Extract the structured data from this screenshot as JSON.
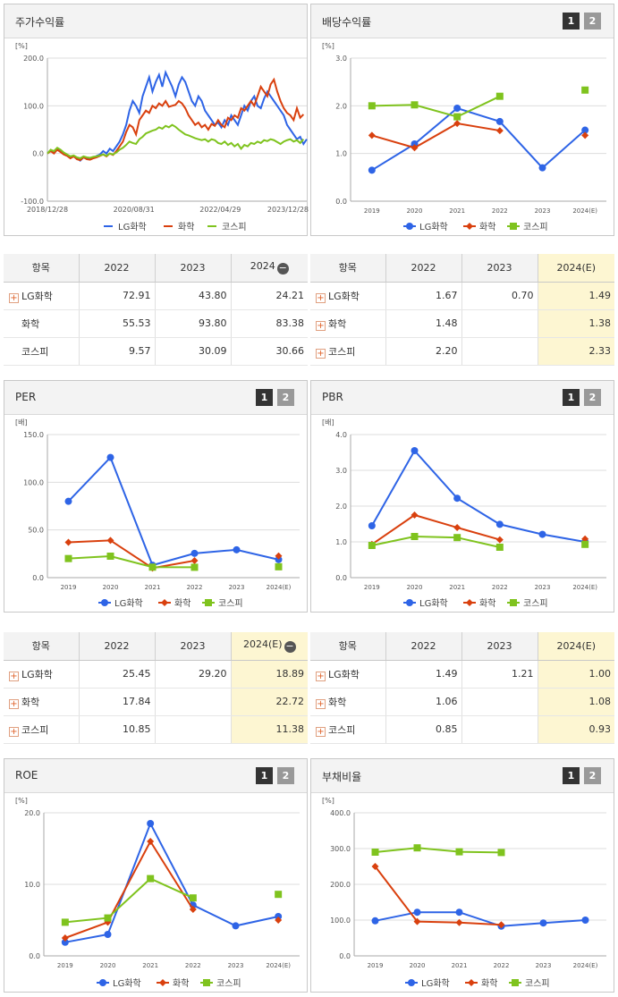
{
  "colors": {
    "lg": "#2e64e6",
    "chem": "#d9400e",
    "kospi": "#7fc31e"
  },
  "panels": {
    "stock": {
      "title": "주가수익률"
    },
    "div": {
      "title": "배당수익률",
      "pg1": "1",
      "pg2": "2"
    },
    "per": {
      "title": "PER",
      "pg1": "1",
      "pg2": "2"
    },
    "pbr": {
      "title": "PBR",
      "pg1": "1",
      "pg2": "2"
    },
    "roe": {
      "title": "ROE",
      "pg1": "1",
      "pg2": "2"
    },
    "debt": {
      "title": "부채비율",
      "pg1": "1",
      "pg2": "2"
    }
  },
  "tables": {
    "stock": {
      "header": [
        "항목",
        "2022",
        "2023",
        "2024"
      ],
      "rows": [
        {
          "name": "LG화학",
          "plus": true,
          "v": [
            "72.91",
            "43.80",
            "24.21"
          ]
        },
        {
          "name": "화학",
          "plus": false,
          "v": [
            "55.53",
            "93.80",
            "83.38"
          ]
        },
        {
          "name": "코스피",
          "plus": false,
          "v": [
            "9.57",
            "30.09",
            "30.66"
          ]
        }
      ]
    },
    "div": {
      "header": [
        "항목",
        "2022",
        "2023",
        "2024(E)"
      ],
      "rows": [
        {
          "name": "LG화학",
          "plus": true,
          "v": [
            "1.67",
            "0.70",
            "1.49"
          ]
        },
        {
          "name": "화학",
          "plus": true,
          "v": [
            "1.48",
            "",
            "1.38"
          ]
        },
        {
          "name": "코스피",
          "plus": true,
          "v": [
            "2.20",
            "",
            "2.33"
          ]
        }
      ]
    },
    "per": {
      "header": [
        "항목",
        "2022",
        "2023",
        "2024(E)"
      ],
      "rows": [
        {
          "name": "LG화학",
          "plus": true,
          "v": [
            "25.45",
            "29.20",
            "18.89"
          ]
        },
        {
          "name": "화학",
          "plus": true,
          "v": [
            "17.84",
            "",
            "22.72"
          ]
        },
        {
          "name": "코스피",
          "plus": true,
          "v": [
            "10.85",
            "",
            "11.38"
          ]
        }
      ]
    },
    "pbr": {
      "header": [
        "항목",
        "2022",
        "2023",
        "2024(E)"
      ],
      "rows": [
        {
          "name": "LG화학",
          "plus": true,
          "v": [
            "1.49",
            "1.21",
            "1.00"
          ]
        },
        {
          "name": "화학",
          "plus": true,
          "v": [
            "1.06",
            "",
            "1.08"
          ]
        },
        {
          "name": "코스피",
          "plus": true,
          "v": [
            "0.85",
            "",
            "0.93"
          ]
        }
      ]
    }
  },
  "chart_data": [
    {
      "id": "stock",
      "type": "line",
      "unit": "[%]",
      "ylim": [
        -100,
        200
      ],
      "yticks": [
        "200.0",
        "100.0",
        "0.0",
        "-100.0"
      ],
      "xticks": [
        "2018/12/28",
        "2020/08/31",
        "2022/04/29",
        "2023/12/28"
      ],
      "series": [
        {
          "name": "LG화학",
          "values": [
            0,
            6,
            2,
            10,
            5,
            0,
            -3,
            -8,
            -5,
            -10,
            -15,
            -8,
            -10,
            -12,
            -9,
            -5,
            -2,
            5,
            0,
            10,
            5,
            15,
            25,
            40,
            60,
            90,
            110,
            100,
            85,
            120,
            140,
            160,
            130,
            150,
            165,
            140,
            170,
            155,
            140,
            120,
            145,
            160,
            150,
            130,
            110,
            100,
            120,
            110,
            90,
            80,
            70,
            60,
            65,
            55,
            70,
            60,
            80,
            70,
            60,
            80,
            100,
            90,
            110,
            120,
            100,
            95,
            115,
            130,
            120,
            110,
            100,
            90,
            80,
            60,
            50,
            40,
            30,
            35,
            20,
            30
          ]
        },
        {
          "name": "화학",
          "values": [
            0,
            5,
            0,
            8,
            3,
            -2,
            -5,
            -10,
            -6,
            -12,
            -14,
            -8,
            -12,
            -13,
            -10,
            -8,
            -5,
            -2,
            -6,
            0,
            -3,
            5,
            15,
            25,
            45,
            60,
            55,
            40,
            70,
            80,
            90,
            85,
            100,
            95,
            105,
            100,
            110,
            98,
            100,
            102,
            110,
            105,
            95,
            80,
            70,
            60,
            65,
            55,
            60,
            50,
            62,
            58,
            70,
            60,
            55,
            75,
            70,
            80,
            75,
            95,
            90,
            100,
            110,
            100,
            120,
            140,
            130,
            120,
            145,
            155,
            130,
            110,
            95,
            85,
            80,
            70,
            95,
            75,
            82
          ]
        },
        {
          "name": "코스피",
          "values": [
            0,
            8,
            5,
            12,
            8,
            2,
            -2,
            -6,
            -4,
            -8,
            -10,
            -6,
            -8,
            -9,
            -7,
            -6,
            -4,
            -2,
            -5,
            0,
            -2,
            2,
            8,
            12,
            18,
            25,
            22,
            20,
            30,
            35,
            42,
            45,
            48,
            50,
            55,
            52,
            58,
            55,
            60,
            56,
            50,
            45,
            40,
            38,
            35,
            32,
            30,
            28,
            30,
            25,
            30,
            28,
            22,
            20,
            25,
            18,
            22,
            15,
            20,
            10,
            18,
            15,
            22,
            20,
            25,
            22,
            28,
            26,
            30,
            28,
            24,
            20,
            25,
            28,
            30,
            25,
            28,
            22,
            30
          ]
        }
      ]
    },
    {
      "id": "div",
      "type": "line",
      "unit": "[%]",
      "ylim": [
        0,
        3
      ],
      "yticks": [
        "3.0",
        "2.0",
        "1.0",
        "0.0"
      ],
      "x": [
        "2019",
        "2020",
        "2021",
        "2022",
        "2023",
        "2024(E)"
      ],
      "series": [
        {
          "name": "LG화학",
          "values": [
            0.65,
            1.2,
            1.95,
            1.67,
            0.7,
            1.49
          ]
        },
        {
          "name": "화학",
          "values": [
            1.38,
            1.12,
            1.63,
            1.48,
            null,
            1.38
          ]
        },
        {
          "name": "코스피",
          "values": [
            2.0,
            2.02,
            1.77,
            2.2,
            null,
            2.33
          ]
        }
      ]
    },
    {
      "id": "per",
      "type": "line",
      "unit": "[배]",
      "ylim": [
        0,
        150
      ],
      "yticks": [
        "150.0",
        "100.0",
        "50.0",
        "0.0"
      ],
      "x": [
        "2019",
        "2020",
        "2021",
        "2022",
        "2023",
        "2024(E)"
      ],
      "series": [
        {
          "name": "LG화학",
          "values": [
            80,
            126,
            13,
            25.45,
            29.2,
            18.89
          ]
        },
        {
          "name": "화학",
          "values": [
            37,
            39,
            10,
            17.84,
            null,
            22.72
          ]
        },
        {
          "name": "코스피",
          "values": [
            20,
            22.5,
            11,
            10.85,
            null,
            11.38
          ]
        }
      ]
    },
    {
      "id": "pbr",
      "type": "line",
      "unit": "[배]",
      "ylim": [
        0,
        4
      ],
      "yticks": [
        "4.0",
        "3.0",
        "2.0",
        "1.0",
        "0.0"
      ],
      "x": [
        "2019",
        "2020",
        "2021",
        "2022",
        "2023",
        "2024(E)"
      ],
      "series": [
        {
          "name": "LG화학",
          "values": [
            1.45,
            3.55,
            2.22,
            1.49,
            1.21,
            1.0
          ]
        },
        {
          "name": "화학",
          "values": [
            0.93,
            1.75,
            1.4,
            1.06,
            null,
            1.08
          ]
        },
        {
          "name": "코스피",
          "values": [
            0.9,
            1.15,
            1.12,
            0.85,
            null,
            0.93
          ]
        }
      ]
    },
    {
      "id": "roe",
      "type": "line",
      "unit": "[%]",
      "ylim": [
        0,
        20
      ],
      "yticks": [
        "20.0",
        "10.0",
        "0.0"
      ],
      "x": [
        "2019",
        "2020",
        "2021",
        "2022",
        "2023",
        "2024(E)"
      ],
      "series": [
        {
          "name": "LG화학",
          "values": [
            1.9,
            3.0,
            18.5,
            7.1,
            4.2,
            5.5
          ]
        },
        {
          "name": "화학",
          "values": [
            2.5,
            4.7,
            16.0,
            6.5,
            null,
            5.0
          ]
        },
        {
          "name": "코스피",
          "values": [
            4.7,
            5.3,
            10.8,
            8.1,
            null,
            8.6
          ]
        }
      ]
    },
    {
      "id": "debt",
      "type": "line",
      "unit": "[%]",
      "ylim": [
        0,
        400
      ],
      "yticks": [
        "400.0",
        "300.0",
        "200.0",
        "100.0",
        "0.0"
      ],
      "x": [
        "2019",
        "2020",
        "2021",
        "2022",
        "2023",
        "2024(E)"
      ],
      "series": [
        {
          "name": "LG화학",
          "values": [
            98,
            122,
            122,
            83,
            92,
            100
          ]
        },
        {
          "name": "화학",
          "values": [
            250,
            96,
            93,
            87,
            null,
            null
          ]
        },
        {
          "name": "코스피",
          "values": [
            290,
            302,
            291,
            289,
            null,
            null
          ]
        }
      ]
    }
  ]
}
